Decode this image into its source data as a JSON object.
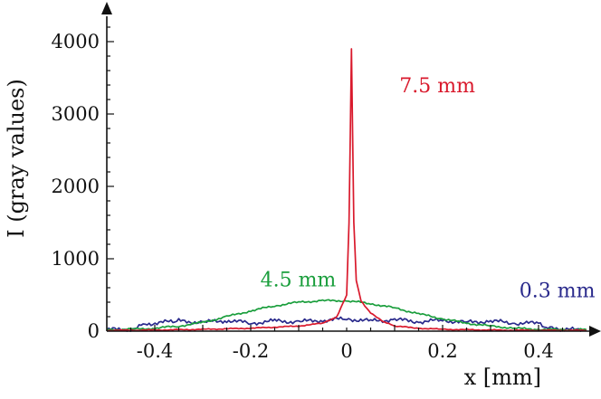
{
  "chart_data": {
    "type": "line",
    "xlabel": "x [mm]",
    "ylabel": "I (gray values)",
    "xlim": [
      -0.5,
      0.5
    ],
    "ylim": [
      0,
      4300
    ],
    "x_ticks": [
      -0.4,
      -0.2,
      0,
      0.2,
      0.4
    ],
    "x_tick_labels": [
      "-0.4",
      "-0.2",
      "0",
      "0.2",
      "0.4"
    ],
    "y_ticks": [
      0,
      1000,
      2000,
      3000,
      4000
    ],
    "y_tick_labels": [
      "0",
      "1000",
      "2000",
      "3000",
      "4000"
    ],
    "grid": false,
    "legend": "inline-labels",
    "series": [
      {
        "name": "0.3 mm",
        "color": "#2a2a8c",
        "x": [
          -0.5,
          -0.45,
          -0.42,
          -0.35,
          -0.3,
          -0.25,
          -0.2,
          -0.15,
          -0.1,
          -0.05,
          0,
          0.05,
          0.1,
          0.15,
          0.2,
          0.25,
          0.3,
          0.35,
          0.4,
          0.42,
          0.45,
          0.5
        ],
        "y": [
          20,
          25,
          100,
          140,
          120,
          150,
          110,
          140,
          130,
          150,
          170,
          140,
          160,
          130,
          150,
          120,
          140,
          110,
          110,
          40,
          20,
          20
        ]
      },
      {
        "name": "4.5 mm",
        "color": "#1a9e3c",
        "x": [
          -0.5,
          -0.45,
          -0.4,
          -0.35,
          -0.3,
          -0.25,
          -0.2,
          -0.15,
          -0.1,
          -0.05,
          0,
          0.05,
          0.1,
          0.15,
          0.2,
          0.25,
          0.3,
          0.35,
          0.4,
          0.45,
          0.5
        ],
        "y": [
          20,
          25,
          40,
          70,
          120,
          200,
          280,
          350,
          400,
          420,
          420,
          380,
          320,
          240,
          170,
          110,
          70,
          40,
          25,
          20,
          20
        ]
      },
      {
        "name": "7.5 mm",
        "color": "#d9192c",
        "x": [
          -0.5,
          -0.4,
          -0.3,
          -0.2,
          -0.1,
          -0.05,
          -0.02,
          0,
          0.005,
          0.01,
          0.015,
          0.02,
          0.03,
          0.05,
          0.08,
          0.1,
          0.15,
          0.2,
          0.3,
          0.4,
          0.5
        ],
        "y": [
          10,
          15,
          25,
          40,
          70,
          110,
          200,
          500,
          1500,
          3900,
          1500,
          700,
          420,
          250,
          120,
          70,
          40,
          25,
          15,
          10,
          10
        ]
      }
    ],
    "annotations": [
      {
        "text": "7.5 mm",
        "series": "7.5 mm",
        "x": 0.11,
        "y": 3300
      },
      {
        "text": "4.5 mm",
        "series": "4.5 mm",
        "x": -0.18,
        "y": 620
      },
      {
        "text": "0.3 mm",
        "series": "0.3 mm",
        "x": 0.36,
        "y": 470
      }
    ]
  }
}
